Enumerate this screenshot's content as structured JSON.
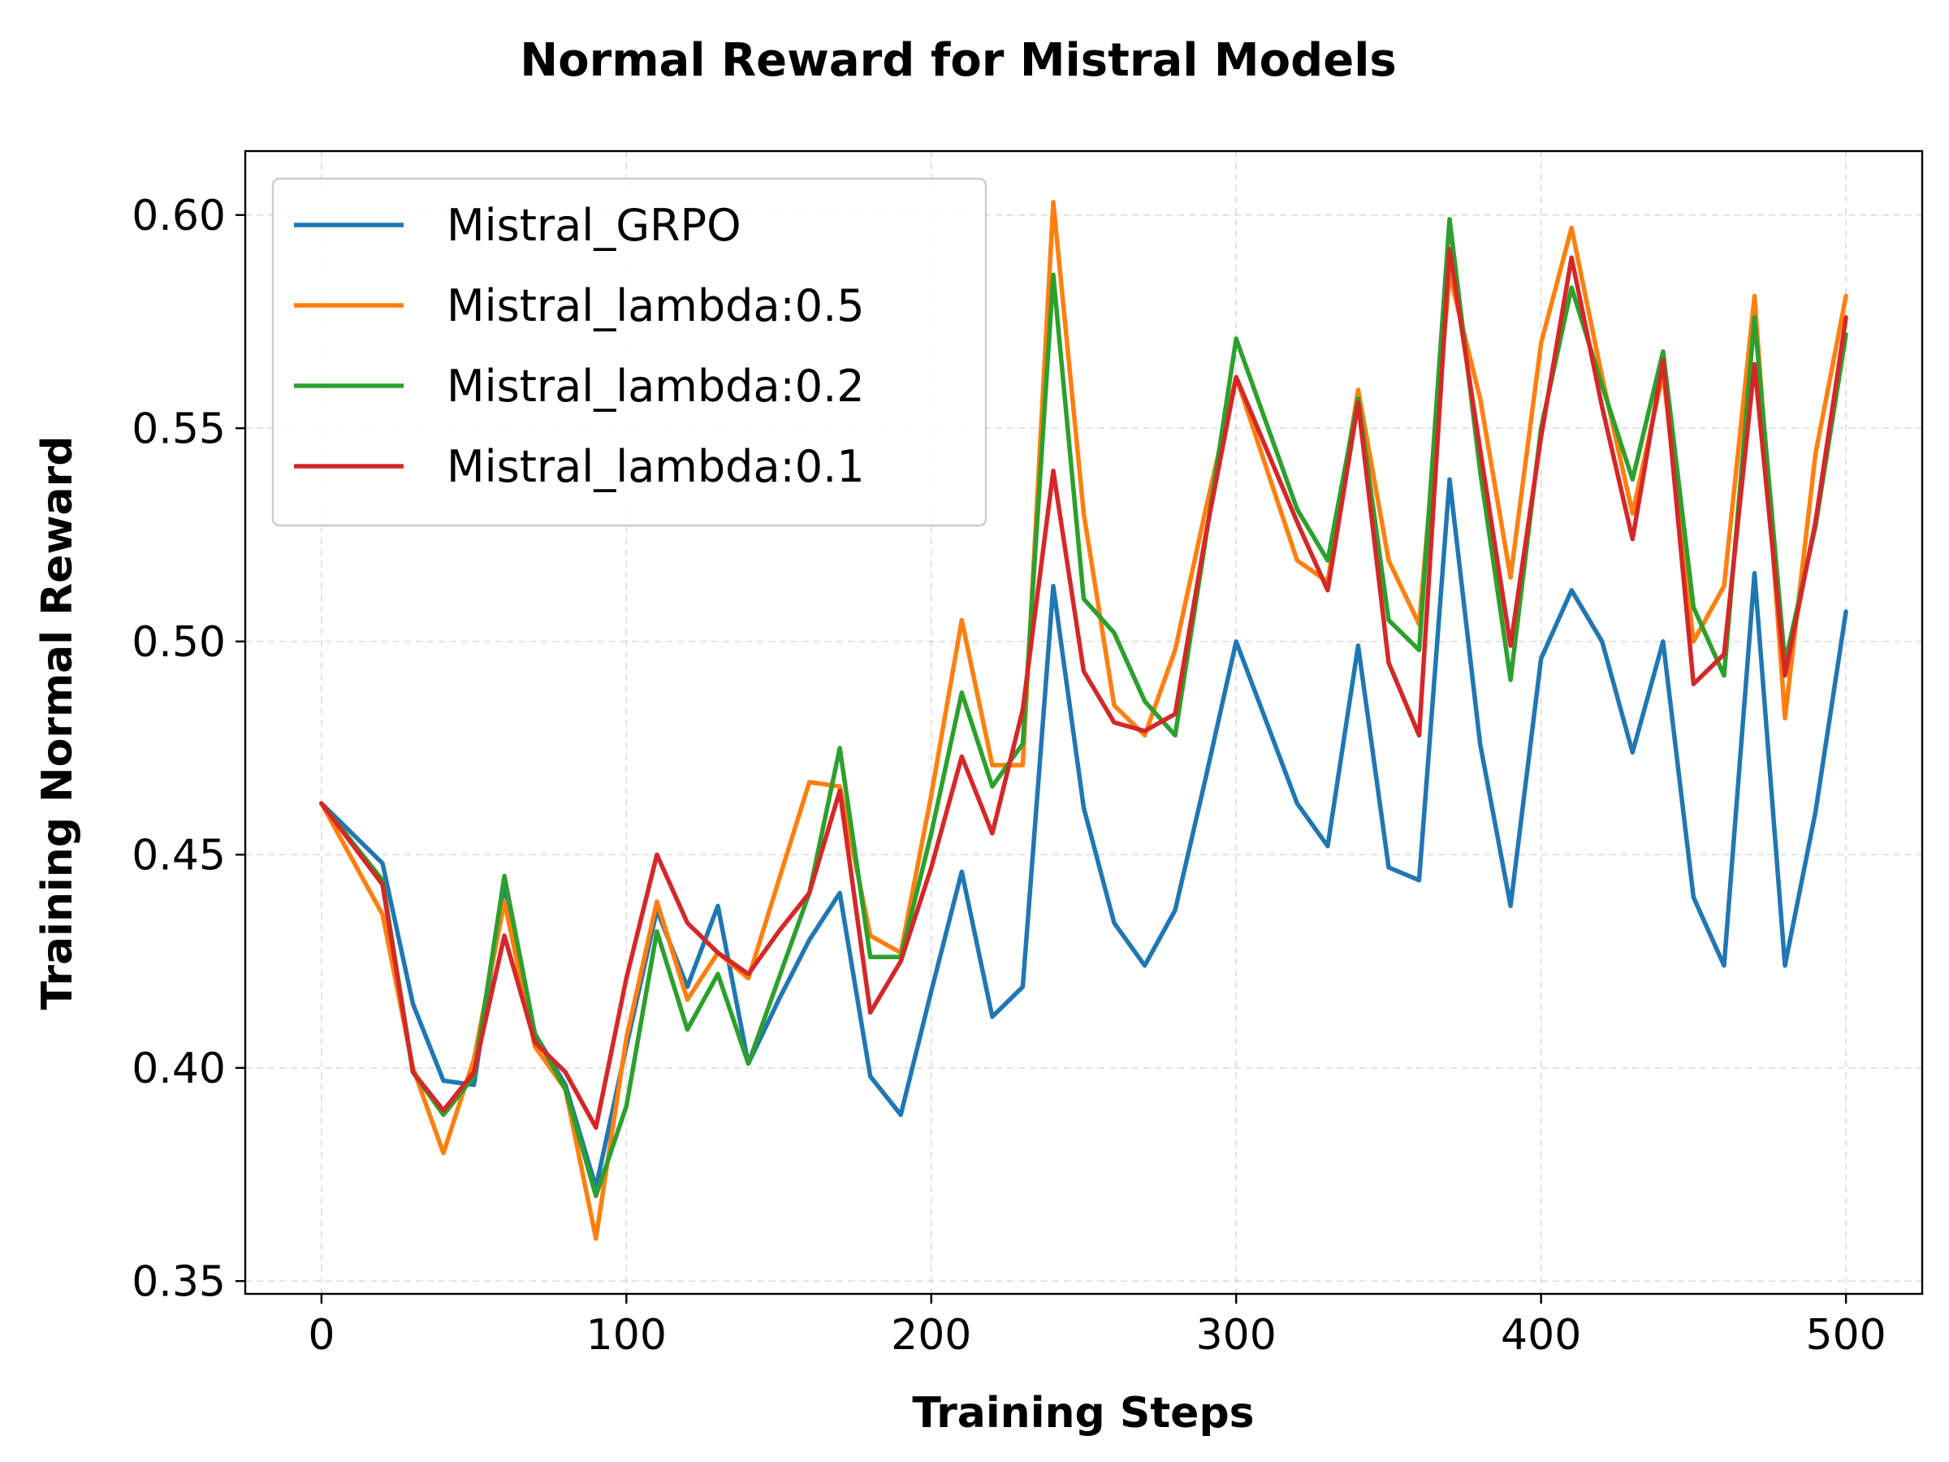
{
  "chart_data": {
    "type": "line",
    "title": "Normal Reward for Mistral Models",
    "xlabel": "Training Steps",
    "ylabel": "Training Normal Reward",
    "xlim": [
      -25,
      525
    ],
    "ylim": [
      0.347,
      0.615
    ],
    "xticks": [
      0,
      100,
      200,
      300,
      400,
      500
    ],
    "yticks": [
      0.35,
      0.4,
      0.45,
      0.5,
      0.55,
      0.6
    ],
    "xtick_labels": [
      "0",
      "100",
      "200",
      "300",
      "400",
      "500"
    ],
    "ytick_labels": [
      "0.35",
      "0.40",
      "0.45",
      "0.50",
      "0.55",
      "0.60"
    ],
    "grid": true,
    "legend_position": "top-left",
    "series": [
      {
        "name": "Mistral_GRPO",
        "color": "#1f77b4",
        "x": [
          0,
          20,
          30,
          40,
          50,
          60,
          70,
          80,
          90,
          100,
          110,
          120,
          130,
          140,
          150,
          160,
          170,
          180,
          190,
          200,
          210,
          220,
          230,
          240,
          250,
          260,
          270,
          280,
          290,
          300,
          310,
          320,
          330,
          340,
          350,
          360,
          370,
          380,
          390,
          400,
          410,
          420,
          430,
          440,
          450,
          460,
          470,
          480,
          490,
          500
        ],
        "y": [
          0.462,
          0.448,
          0.415,
          0.397,
          0.396,
          0.443,
          0.408,
          0.396,
          0.372,
          0.405,
          0.437,
          0.419,
          0.438,
          0.401,
          0.416,
          0.43,
          0.441,
          0.398,
          0.389,
          0.418,
          0.446,
          0.412,
          0.419,
          0.513,
          0.461,
          0.434,
          0.424,
          0.437,
          0.468,
          0.5,
          0.481,
          0.462,
          0.452,
          0.499,
          0.447,
          0.444,
          0.538,
          0.476,
          0.438,
          0.496,
          0.512,
          0.5,
          0.474,
          0.5,
          0.44,
          0.424,
          0.516,
          0.424,
          0.46,
          0.507
        ]
      },
      {
        "name": "Mistral_lambda:0.5",
        "color": "#ff7f0e",
        "x": [
          0,
          20,
          30,
          40,
          50,
          60,
          70,
          80,
          90,
          100,
          110,
          120,
          130,
          140,
          150,
          160,
          170,
          180,
          190,
          200,
          210,
          220,
          230,
          240,
          250,
          260,
          270,
          280,
          290,
          300,
          320,
          330,
          340,
          350,
          360,
          370,
          380,
          390,
          400,
          410,
          420,
          430,
          440,
          450,
          460,
          470,
          480,
          490,
          500
        ],
        "y": [
          0.462,
          0.436,
          0.4,
          0.38,
          0.402,
          0.439,
          0.405,
          0.395,
          0.36,
          0.407,
          0.439,
          0.416,
          0.427,
          0.421,
          0.444,
          0.467,
          0.466,
          0.431,
          0.427,
          0.464,
          0.505,
          0.471,
          0.471,
          0.603,
          0.53,
          0.485,
          0.478,
          0.498,
          0.531,
          0.562,
          0.519,
          0.514,
          0.559,
          0.519,
          0.504,
          0.586,
          0.557,
          0.515,
          0.57,
          0.597,
          0.562,
          0.53,
          0.563,
          0.5,
          0.513,
          0.581,
          0.482,
          0.544,
          0.581
        ]
      },
      {
        "name": "Mistral_lambda:0.2",
        "color": "#2ca02c",
        "x": [
          0,
          20,
          30,
          40,
          50,
          60,
          70,
          80,
          90,
          100,
          110,
          120,
          130,
          140,
          150,
          160,
          170,
          180,
          190,
          200,
          210,
          220,
          230,
          240,
          250,
          260,
          270,
          280,
          290,
          300,
          320,
          330,
          340,
          350,
          360,
          370,
          380,
          390,
          400,
          410,
          420,
          430,
          440,
          450,
          460,
          470,
          480,
          490,
          500
        ],
        "y": [
          0.462,
          0.444,
          0.399,
          0.389,
          0.398,
          0.445,
          0.408,
          0.395,
          0.37,
          0.391,
          0.432,
          0.409,
          0.422,
          0.401,
          0.421,
          0.441,
          0.475,
          0.426,
          0.426,
          0.455,
          0.488,
          0.466,
          0.476,
          0.586,
          0.51,
          0.502,
          0.486,
          0.478,
          0.524,
          0.571,
          0.531,
          0.519,
          0.557,
          0.505,
          0.498,
          0.599,
          0.54,
          0.491,
          0.55,
          0.583,
          0.56,
          0.538,
          0.568,
          0.508,
          0.492,
          0.576,
          0.495,
          0.527,
          0.572
        ]
      },
      {
        "name": "Mistral_lambda:0.1",
        "color": "#d62728",
        "x": [
          0,
          20,
          30,
          40,
          50,
          60,
          70,
          80,
          90,
          100,
          110,
          120,
          130,
          140,
          150,
          160,
          170,
          180,
          190,
          200,
          210,
          220,
          230,
          240,
          250,
          260,
          270,
          280,
          290,
          300,
          320,
          330,
          340,
          350,
          360,
          370,
          380,
          390,
          400,
          410,
          420,
          430,
          440,
          450,
          460,
          470,
          480,
          490,
          500
        ],
        "y": [
          0.462,
          0.443,
          0.399,
          0.39,
          0.399,
          0.431,
          0.406,
          0.399,
          0.386,
          0.421,
          0.45,
          0.434,
          0.427,
          0.422,
          0.432,
          0.441,
          0.465,
          0.413,
          0.425,
          0.447,
          0.473,
          0.455,
          0.484,
          0.54,
          0.493,
          0.481,
          0.479,
          0.483,
          0.525,
          0.562,
          0.528,
          0.512,
          0.556,
          0.495,
          0.478,
          0.592,
          0.545,
          0.499,
          0.548,
          0.59,
          0.555,
          0.524,
          0.566,
          0.49,
          0.497,
          0.565,
          0.492,
          0.528,
          0.576
        ]
      }
    ]
  }
}
